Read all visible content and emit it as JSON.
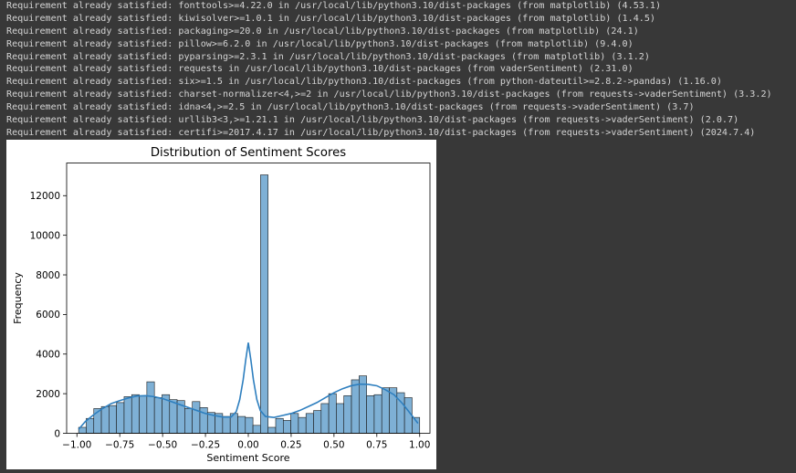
{
  "console": {
    "lines": [
      "Requirement already satisfied: fonttools>=4.22.0 in /usr/local/lib/python3.10/dist-packages (from matplotlib) (4.53.1)",
      "Requirement already satisfied: kiwisolver>=1.0.1 in /usr/local/lib/python3.10/dist-packages (from matplotlib) (1.4.5)",
      "Requirement already satisfied: packaging>=20.0 in /usr/local/lib/python3.10/dist-packages (from matplotlib) (24.1)",
      "Requirement already satisfied: pillow>=6.2.0 in /usr/local/lib/python3.10/dist-packages (from matplotlib) (9.4.0)",
      "Requirement already satisfied: pyparsing>=2.3.1 in /usr/local/lib/python3.10/dist-packages (from matplotlib) (3.1.2)",
      "Requirement already satisfied: requests in /usr/local/lib/python3.10/dist-packages (from vaderSentiment) (2.31.0)",
      "Requirement already satisfied: six>=1.5 in /usr/local/lib/python3.10/dist-packages (from python-dateutil>=2.8.2->pandas) (1.16.0)",
      "Requirement already satisfied: charset-normalizer<4,>=2 in /usr/local/lib/python3.10/dist-packages (from requests->vaderSentiment) (3.3.2)",
      "Requirement already satisfied: idna<4,>=2.5 in /usr/local/lib/python3.10/dist-packages (from requests->vaderSentiment) (3.7)",
      "Requirement already satisfied: urllib3<3,>=1.21.1 in /usr/local/lib/python3.10/dist-packages (from requests->vaderSentiment) (2.0.7)",
      "Requirement already satisfied: certifi>=2017.4.17 in /usr/local/lib/python3.10/dist-packages (from requests->vaderSentiment) (2024.7.4)"
    ]
  },
  "colors": {
    "bar_fill": "#7eb0d5",
    "bar_edge": "#1a1a1a",
    "kde_line": "#2e7fbf",
    "console_text": "#d4d4d4",
    "background": "#383838"
  },
  "chart_data": {
    "type": "bar",
    "title": "Distribution of Sentiment Scores",
    "xlabel": "Sentiment Score",
    "ylabel": "Frequency",
    "xlim": [
      -1.06,
      1.06
    ],
    "ylim": [
      0,
      13650
    ],
    "x_ticks": [
      -1.0,
      -0.75,
      -0.5,
      -0.25,
      0.0,
      0.25,
      0.5,
      0.75,
      1.0
    ],
    "x_tick_labels": [
      "−1.00",
      "−0.75",
      "−0.50",
      "−0.25",
      "0.00",
      "0.25",
      "0.50",
      "0.75",
      "1.00"
    ],
    "y_ticks": [
      0,
      2000,
      4000,
      6000,
      8000,
      10000,
      12000
    ],
    "y_tick_labels": [
      "0",
      "2000",
      "4000",
      "6000",
      "8000",
      "10000",
      "12000"
    ],
    "bin_range": [
      -0.99,
      1.0
    ],
    "bin_counts": [
      300,
      750,
      1250,
      1350,
      1400,
      1550,
      1850,
      1950,
      1900,
      2600,
      1800,
      1950,
      1700,
      1650,
      1250,
      1600,
      1300,
      1050,
      1000,
      850,
      1000,
      850,
      800,
      400,
      13050,
      300,
      750,
      650,
      1000,
      800,
      1000,
      1150,
      1500,
      2000,
      1500,
      1900,
      2700,
      2900,
      1900,
      1950,
      2300,
      2300,
      2050,
      1800,
      800
    ],
    "kde": {
      "x": [
        -0.99,
        -0.95,
        -0.9,
        -0.85,
        -0.8,
        -0.75,
        -0.7,
        -0.65,
        -0.6,
        -0.55,
        -0.5,
        -0.45,
        -0.4,
        -0.35,
        -0.3,
        -0.25,
        -0.2,
        -0.15,
        -0.1,
        -0.07,
        -0.05,
        -0.03,
        -0.015,
        0.0,
        0.015,
        0.03,
        0.05,
        0.07,
        0.1,
        0.15,
        0.2,
        0.25,
        0.3,
        0.35,
        0.4,
        0.45,
        0.5,
        0.55,
        0.6,
        0.65,
        0.7,
        0.75,
        0.8,
        0.85,
        0.9,
        0.95,
        0.99
      ],
      "y": [
        200,
        600,
        950,
        1250,
        1500,
        1650,
        1780,
        1880,
        1900,
        1850,
        1750,
        1600,
        1450,
        1300,
        1150,
        1000,
        900,
        820,
        820,
        1100,
        1700,
        2700,
        3700,
        4580,
        3700,
        2700,
        1700,
        1150,
        850,
        800,
        900,
        1000,
        1150,
        1350,
        1550,
        1800,
        2050,
        2250,
        2400,
        2480,
        2470,
        2400,
        2200,
        1950,
        1500,
        950,
        500
      ]
    }
  }
}
